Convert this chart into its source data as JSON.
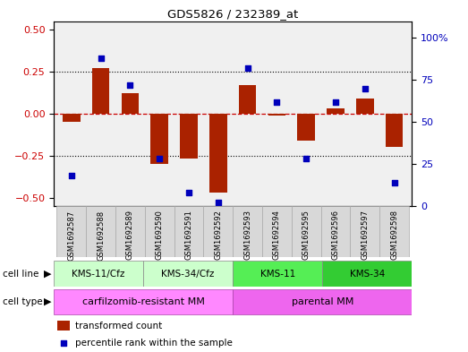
{
  "title": "GDS5826 / 232389_at",
  "samples": [
    "GSM1692587",
    "GSM1692588",
    "GSM1692589",
    "GSM1692590",
    "GSM1692591",
    "GSM1692592",
    "GSM1692593",
    "GSM1692594",
    "GSM1692595",
    "GSM1692596",
    "GSM1692597",
    "GSM1692598"
  ],
  "transformed_count": [
    -0.05,
    0.27,
    0.12,
    -0.3,
    -0.27,
    -0.47,
    0.17,
    -0.01,
    -0.16,
    0.03,
    0.09,
    -0.2
  ],
  "percentile_rank": [
    18,
    88,
    72,
    28,
    8,
    2,
    82,
    62,
    28,
    62,
    70,
    14
  ],
  "bar_color": "#AA2200",
  "dot_color": "#0000BB",
  "ylim": [
    -0.55,
    0.55
  ],
  "yticks_left": [
    -0.5,
    -0.25,
    0,
    0.25,
    0.5
  ],
  "yticks_right": [
    0,
    25,
    50,
    75,
    100
  ],
  "right_ylim": [
    0,
    110
  ],
  "bg_color": "#ffffff",
  "plot_bg_color": "#f0f0f0",
  "zero_line_color": "#CC0000",
  "cl_groups": [
    {
      "label": "KMS-11/Cfz",
      "start": 0,
      "end": 3,
      "color": "#CCFFCC"
    },
    {
      "label": "KMS-34/Cfz",
      "start": 3,
      "end": 6,
      "color": "#CCFFCC"
    },
    {
      "label": "KMS-11",
      "start": 6,
      "end": 9,
      "color": "#55EE55"
    },
    {
      "label": "KMS-34",
      "start": 9,
      "end": 12,
      "color": "#33CC33"
    }
  ],
  "ct_groups": [
    {
      "label": "carfilzomib-resistant MM",
      "start": 0,
      "end": 6,
      "color": "#FF88FF"
    },
    {
      "label": "parental MM",
      "start": 6,
      "end": 12,
      "color": "#EE66EE"
    }
  ],
  "legend_items": [
    {
      "label": "transformed count",
      "color": "#AA2200"
    },
    {
      "label": "percentile rank within the sample",
      "color": "#0000BB"
    }
  ]
}
